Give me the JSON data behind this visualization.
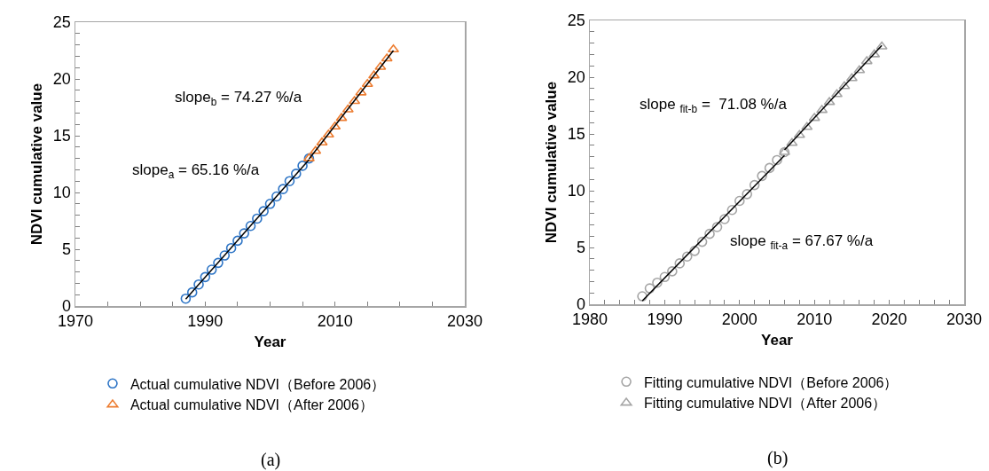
{
  "chart_data": [
    {
      "type": "scatter",
      "xlabel": "Year",
      "ylabel": "NDVI cumulative value",
      "xlim": [
        1970,
        2030
      ],
      "ylim": [
        0,
        25
      ],
      "xticks": [
        1970,
        {
          "value": 1975,
          "label": null
        },
        {
          "value": 1980,
          "label": null
        },
        {
          "value": 1985,
          "label": null
        },
        1990,
        {
          "value": 1995,
          "label": null
        },
        {
          "value": 2000,
          "label": null
        },
        {
          "value": 2005,
          "label": null
        },
        2010,
        {
          "value": 2015,
          "label": null
        },
        {
          "value": 2020,
          "label": null
        },
        {
          "value": 2025,
          "label": null
        },
        2030
      ],
      "yticks": [
        0,
        {
          "value": 1,
          "label": null
        },
        {
          "value": 2,
          "label": null
        },
        {
          "value": 3,
          "label": null
        },
        {
          "value": 4,
          "label": null
        },
        5,
        {
          "value": 6,
          "label": null
        },
        {
          "value": 7,
          "label": null
        },
        {
          "value": 8,
          "label": null
        },
        {
          "value": 9,
          "label": null
        },
        10,
        {
          "value": 11,
          "label": null
        },
        {
          "value": 12,
          "label": null
        },
        {
          "value": 13,
          "label": null
        },
        {
          "value": 14,
          "label": null
        },
        15,
        {
          "value": 16,
          "label": null
        },
        {
          "value": 17,
          "label": null
        },
        {
          "value": 18,
          "label": null
        },
        {
          "value": 19,
          "label": null
        },
        20,
        {
          "value": 21,
          "label": null
        },
        {
          "value": 22,
          "label": null
        },
        {
          "value": 23,
          "label": null
        },
        {
          "value": 24,
          "label": null
        },
        25
      ],
      "grid": false,
      "legend": "bottom",
      "series": [
        {
          "name": "Actual cumulative NDVI（Before 2006）",
          "color": "#2e75c6",
          "marker": "circle",
          "x": [
            1987,
            1988,
            1989,
            1990,
            1991,
            1992,
            1993,
            1994,
            1995,
            1996,
            1997,
            1998,
            1999,
            2000,
            2001,
            2002,
            2003,
            2004,
            2005,
            2006
          ],
          "values": [
            0.65,
            1.2,
            1.9,
            2.55,
            3.2,
            3.8,
            4.45,
            5.1,
            5.75,
            6.4,
            7.05,
            7.7,
            8.35,
            9.0,
            9.65,
            10.3,
            11.0,
            11.65,
            12.35,
            13.0
          ]
        },
        {
          "name": "Actual cumulative NDVI（After 2006）",
          "color": "#ed7d31",
          "marker": "triangle",
          "x": [
            2006,
            2007,
            2008,
            2009,
            2010,
            2011,
            2012,
            2013,
            2014,
            2015,
            2016,
            2017,
            2018,
            2019
          ],
          "values": [
            13.0,
            13.65,
            14.4,
            15.1,
            15.8,
            16.55,
            17.3,
            18.05,
            18.8,
            19.55,
            20.3,
            21.05,
            21.8,
            22.6
          ]
        },
        {
          "type": "line",
          "color": "#000000",
          "line_style": "solid",
          "x": [
            1987,
            2006
          ],
          "values": [
            0.6,
            12.9
          ]
        },
        {
          "type": "line",
          "color": "#000000",
          "line_style": "solid",
          "x": [
            2006,
            2019
          ],
          "values": [
            12.95,
            22.5
          ]
        }
      ],
      "annotations": [
        "slope$_{b}$ = 74.27 %/a",
        "slope$_{a}$ = 65.16 %/a",
        "(a)"
      ]
    },
    {
      "type": "scatter",
      "xlabel": "Year",
      "ylabel": "NDVI cumulative value",
      "xlim": [
        1980,
        2030
      ],
      "ylim": [
        0,
        25
      ],
      "xticks": [
        1980,
        {
          "value": 1982,
          "label": null
        },
        {
          "value": 1984,
          "label": null
        },
        {
          "value": 1986,
          "label": null
        },
        {
          "value": 1988,
          "label": null
        },
        1990,
        {
          "value": 1992,
          "label": null
        },
        {
          "value": 1994,
          "label": null
        },
        {
          "value": 1996,
          "label": null
        },
        {
          "value": 1998,
          "label": null
        },
        2000,
        {
          "value": 2002,
          "label": null
        },
        {
          "value": 2004,
          "label": null
        },
        {
          "value": 2006,
          "label": null
        },
        {
          "value": 2008,
          "label": null
        },
        2010,
        {
          "value": 2012,
          "label": null
        },
        {
          "value": 2014,
          "label": null
        },
        {
          "value": 2016,
          "label": null
        },
        {
          "value": 2018,
          "label": null
        },
        2020,
        {
          "value": 2022,
          "label": null
        },
        {
          "value": 2024,
          "label": null
        },
        {
          "value": 2026,
          "label": null
        },
        {
          "value": 2028,
          "label": null
        },
        2030
      ],
      "yticks": [
        0,
        {
          "value": 1,
          "label": null
        },
        {
          "value": 2,
          "label": null
        },
        {
          "value": 3,
          "label": null
        },
        {
          "value": 4,
          "label": null
        },
        5,
        {
          "value": 6,
          "label": null
        },
        {
          "value": 7,
          "label": null
        },
        {
          "value": 8,
          "label": null
        },
        {
          "value": 9,
          "label": null
        },
        10,
        {
          "value": 11,
          "label": null
        },
        {
          "value": 12,
          "label": null
        },
        {
          "value": 13,
          "label": null
        },
        {
          "value": 14,
          "label": null
        },
        15,
        {
          "value": 16,
          "label": null
        },
        {
          "value": 17,
          "label": null
        },
        {
          "value": 18,
          "label": null
        },
        {
          "value": 19,
          "label": null
        },
        20,
        {
          "value": 21,
          "label": null
        },
        {
          "value": 22,
          "label": null
        },
        {
          "value": 23,
          "label": null
        },
        {
          "value": 24,
          "label": null
        },
        25
      ],
      "grid": false,
      "legend": "bottom",
      "series": [
        {
          "name": "Fitting cumulative NDVI（Before 2006）",
          "color": "#a5a5a5",
          "marker": "circle",
          "x": [
            1987,
            1988,
            1989,
            1990,
            1991,
            1992,
            1993,
            1994,
            1995,
            1996,
            1997,
            1998,
            1999,
            2000,
            2001,
            2002,
            2003,
            2004,
            2005,
            2006
          ],
          "values": [
            0.7,
            1.4,
            1.9,
            2.4,
            2.9,
            3.6,
            4.2,
            4.7,
            5.5,
            6.2,
            6.8,
            7.5,
            8.3,
            9.1,
            9.7,
            10.5,
            11.3,
            12.0,
            12.7,
            13.4
          ]
        },
        {
          "name": "Fitting cumulative NDVI（After 2006）",
          "color": "#a5a5a5",
          "marker": "triangle",
          "x": [
            2006,
            2007,
            2008,
            2009,
            2010,
            2011,
            2012,
            2013,
            2014,
            2015,
            2016,
            2017,
            2018,
            2019
          ],
          "values": [
            13.4,
            14.2,
            14.9,
            15.6,
            16.4,
            17.1,
            17.8,
            18.5,
            19.2,
            19.9,
            20.6,
            21.4,
            22.0,
            22.7
          ]
        },
        {
          "type": "line",
          "color": "#000000",
          "line_style": "solid",
          "x": [
            1987,
            2006
          ],
          "values": [
            0.3,
            13.1
          ]
        },
        {
          "type": "line",
          "color": "#000000",
          "line_style": "solid",
          "x": [
            2006,
            2019
          ],
          "values": [
            13.6,
            22.8
          ]
        }
      ],
      "annotations": [
        "slope $_{fit-b}$ =  71.08 %/a",
        "slope $_{fit-a}$ = 67.67 %/a",
        "(b)"
      ]
    }
  ]
}
